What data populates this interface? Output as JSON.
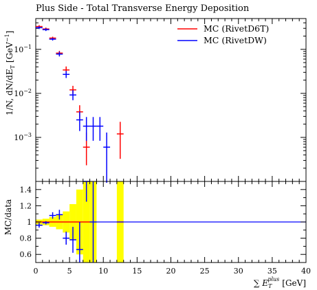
{
  "chart_data": [
    {
      "type": "scatter",
      "panel": "main",
      "title": "Plus Side - Total Transverse Energy Deposition",
      "ylabel": "1/N, dN/dE_T [GeV^-1]",
      "ylabel_parts": {
        "main": "1/N, dN/dE",
        "sub": "T",
        "unit": "[GeV",
        "sup": "−1",
        "close": "]"
      },
      "xlim": [
        0,
        40
      ],
      "ylim": [
        0.0001,
        0.5
      ],
      "yscale": "log",
      "yticks": [
        {
          "value": 0.1,
          "base": "10",
          "exp": "−1"
        },
        {
          "value": 0.01,
          "base": "10",
          "exp": "−2"
        },
        {
          "value": 0.001,
          "base": "10",
          "exp": "−3"
        }
      ],
      "legend_position": "top-right",
      "series": [
        {
          "name": "MC (RivetD6T)",
          "color": "#ff0000",
          "points": [
            {
              "x": 0.5,
              "y": 0.33,
              "xerr": 0.5,
              "ylo": 0.33,
              "yhi": 0.33
            },
            {
              "x": 1.5,
              "y": 0.29,
              "xerr": 0.5,
              "ylo": 0.29,
              "yhi": 0.29
            },
            {
              "x": 2.5,
              "y": 0.18,
              "xerr": 0.5,
              "ylo": 0.18,
              "yhi": 0.18
            },
            {
              "x": 3.5,
              "y": 0.082,
              "xerr": 0.5,
              "ylo": 0.078,
              "yhi": 0.086
            },
            {
              "x": 4.5,
              "y": 0.034,
              "xerr": 0.5,
              "ylo": 0.031,
              "yhi": 0.038
            },
            {
              "x": 5.5,
              "y": 0.012,
              "xerr": 0.5,
              "ylo": 0.0105,
              "yhi": 0.0138
            },
            {
              "x": 6.5,
              "y": 0.0038,
              "xerr": 0.5,
              "ylo": 0.0029,
              "yhi": 0.005
            },
            {
              "x": 7.5,
              "y": 0.0006,
              "xerr": 0.5,
              "ylo": 0.00025,
              "yhi": 0.0012
            },
            {
              "x": 12.5,
              "y": 0.0012,
              "xerr": 0.5,
              "ylo": 0.00035,
              "yhi": 0.0021
            }
          ]
        },
        {
          "name": "MC (RivetDW)",
          "color": "#0000ff",
          "points": [
            {
              "x": 0.5,
              "y": 0.31,
              "xerr": 0.5,
              "ylo": 0.31,
              "yhi": 0.31
            },
            {
              "x": 1.5,
              "y": 0.28,
              "xerr": 0.5,
              "ylo": 0.28,
              "yhi": 0.28
            },
            {
              "x": 2.5,
              "y": 0.17,
              "xerr": 0.5,
              "ylo": 0.17,
              "yhi": 0.17
            },
            {
              "x": 3.5,
              "y": 0.078,
              "xerr": 0.5,
              "ylo": 0.074,
              "yhi": 0.082
            },
            {
              "x": 4.5,
              "y": 0.027,
              "xerr": 0.5,
              "ylo": 0.024,
              "yhi": 0.03
            },
            {
              "x": 5.5,
              "y": 0.0092,
              "xerr": 0.5,
              "ylo": 0.0075,
              "yhi": 0.011
            },
            {
              "x": 6.5,
              "y": 0.0025,
              "xerr": 0.5,
              "ylo": 0.0015,
              "yhi": 0.0036
            },
            {
              "x": 7.5,
              "y": 0.0018,
              "xerr": 0.5,
              "ylo": 0.0009,
              "yhi": 0.0027
            },
            {
              "x": 8.5,
              "y": 0.0018,
              "xerr": 0.5,
              "ylo": 0.0009,
              "yhi": 0.0027
            },
            {
              "x": 9.5,
              "y": 0.0018,
              "xerr": 0.5,
              "ylo": 0.0009,
              "yhi": 0.0027
            },
            {
              "x": 10.5,
              "y": 0.0006,
              "xerr": 0.5,
              "ylo": 0.0001,
              "yhi": 0.0012
            }
          ]
        }
      ]
    },
    {
      "type": "scatter",
      "panel": "ratio",
      "ylabel": "MC/data",
      "xlabel": "∑ E_T^plus [GeV]",
      "xlabel_parts": {
        "sum": "∑",
        "main": "E",
        "sub": "T",
        "sup": "plus",
        "unit": "[GeV]"
      },
      "xlim": [
        0,
        40
      ],
      "ylim": [
        0.5,
        1.5
      ],
      "xticks": [
        0,
        5,
        10,
        15,
        20,
        25,
        30,
        35,
        40
      ],
      "yticks": [
        0.6,
        0.8,
        1,
        1.2,
        1.4
      ],
      "reference_line": 1,
      "uncertainty_band": {
        "color": "#ffff00",
        "bins": [
          {
            "x0": 0,
            "x1": 1,
            "lo": 0.97,
            "hi": 1.03
          },
          {
            "x0": 1,
            "x1": 2,
            "lo": 0.96,
            "hi": 1.04
          },
          {
            "x0": 2,
            "x1": 3,
            "lo": 0.94,
            "hi": 1.06
          },
          {
            "x0": 3,
            "x1": 4,
            "lo": 0.91,
            "hi": 1.09
          },
          {
            "x0": 4,
            "x1": 5,
            "lo": 0.87,
            "hi": 1.13
          },
          {
            "x0": 5,
            "x1": 6,
            "lo": 0.78,
            "hi": 1.22
          },
          {
            "x0": 6,
            "x1": 7,
            "lo": 0.6,
            "hi": 1.4
          },
          {
            "x0": 7,
            "x1": 8,
            "lo": 0.5,
            "hi": 1.5
          },
          {
            "x0": 8,
            "x1": 9,
            "lo": 0.5,
            "hi": 1.5
          },
          {
            "x0": 12,
            "x1": 13,
            "lo": 0.5,
            "hi": 1.5
          }
        ]
      },
      "series": [
        {
          "name": "MC (RivetD6T)",
          "color": "#ff0000",
          "points": [
            {
              "x": 0.5,
              "y": 1.0,
              "xerr": 0.5,
              "ylo": 1.0,
              "yhi": 1.0
            },
            {
              "x": 1.5,
              "y": 1.0,
              "xerr": 0.5,
              "ylo": 1.0,
              "yhi": 1.0
            },
            {
              "x": 2.5,
              "y": 1.0,
              "xerr": 0.5,
              "ylo": 1.0,
              "yhi": 1.0
            },
            {
              "x": 3.5,
              "y": 1.0,
              "xerr": 0.5,
              "ylo": 1.0,
              "yhi": 1.0
            },
            {
              "x": 4.5,
              "y": 1.0,
              "xerr": 0.5,
              "ylo": 1.0,
              "yhi": 1.0
            },
            {
              "x": 5.5,
              "y": 1.0,
              "xerr": 0.5,
              "ylo": 1.0,
              "yhi": 1.0
            },
            {
              "x": 6.5,
              "y": 1.0,
              "xerr": 0.5,
              "ylo": 1.0,
              "yhi": 1.0
            },
            {
              "x": 7.5,
              "y": 1.0,
              "xerr": 0.5,
              "ylo": 1.0,
              "yhi": 1.0
            },
            {
              "x": 12.5,
              "y": 1.0,
              "xerr": 0.5,
              "ylo": 1.0,
              "yhi": 1.0
            }
          ]
        },
        {
          "name": "MC (RivetDW)",
          "color": "#0000ff",
          "points": [
            {
              "x": 0.5,
              "y": 0.96,
              "xerr": 0.5,
              "ylo": 0.93,
              "yhi": 0.99
            },
            {
              "x": 1.5,
              "y": 0.99,
              "xerr": 0.5,
              "ylo": 0.97,
              "yhi": 1.01
            },
            {
              "x": 2.5,
              "y": 1.08,
              "xerr": 0.5,
              "ylo": 1.04,
              "yhi": 1.12
            },
            {
              "x": 3.5,
              "y": 1.09,
              "xerr": 0.5,
              "ylo": 1.03,
              "yhi": 1.15
            },
            {
              "x": 4.5,
              "y": 0.8,
              "xerr": 0.5,
              "ylo": 0.72,
              "yhi": 0.88
            },
            {
              "x": 5.5,
              "y": 0.78,
              "xerr": 0.5,
              "ylo": 0.62,
              "yhi": 0.94
            },
            {
              "x": 6.5,
              "y": 0.66,
              "xerr": 0.5,
              "ylo": 0.5,
              "yhi": 1.0
            },
            {
              "x": 7.5,
              "y": 1.5,
              "xerr": 0.5,
              "ylo": 1.25,
              "yhi": 1.5
            },
            {
              "x": 8.5,
              "y": 1.0,
              "xerr": 0.5,
              "ylo": 0.5,
              "yhi": 1.5
            }
          ]
        }
      ]
    }
  ]
}
